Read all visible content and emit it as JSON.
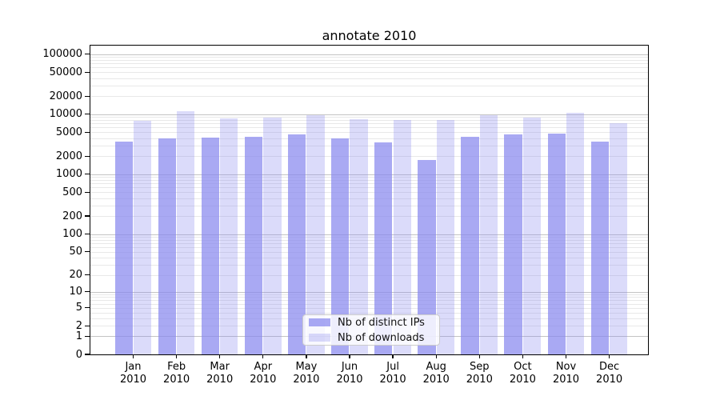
{
  "title": "annotate 2010",
  "chart_data": {
    "type": "bar",
    "title": "annotate 2010",
    "categories": [
      "Jan",
      "Feb",
      "Mar",
      "Apr",
      "May",
      "Jun",
      "Jul",
      "Aug",
      "Sep",
      "Oct",
      "Nov",
      "Dec"
    ],
    "year": "2010",
    "series": [
      {
        "name": "Nb of distinct IPs",
        "color": "rgba(136,136,238,0.72)",
        "values": [
          3530,
          3920,
          4040,
          4210,
          4650,
          3990,
          3360,
          1730,
          4210,
          4560,
          4800,
          3460
        ]
      },
      {
        "name": "Nb of downloads",
        "color": "rgba(136,136,238,0.30)",
        "values": [
          7760,
          11100,
          8590,
          8690,
          9600,
          8260,
          8130,
          7940,
          9600,
          8870,
          10450,
          7140
        ]
      }
    ],
    "y_scale": "log10(value+1)",
    "ylim": [
      0,
      139000
    ],
    "y_ticks": [
      100000,
      50000,
      20000,
      10000,
      5000,
      2000,
      1000,
      500,
      200,
      100,
      50,
      20,
      10,
      5,
      2,
      1,
      0
    ],
    "grid": true,
    "legend_position": "lower center",
    "colors": {
      "bar_base": "#8888ee",
      "grid_major": "#c3c3c3",
      "grid_minor": "#e8e8e8",
      "axis": "#000000"
    }
  }
}
